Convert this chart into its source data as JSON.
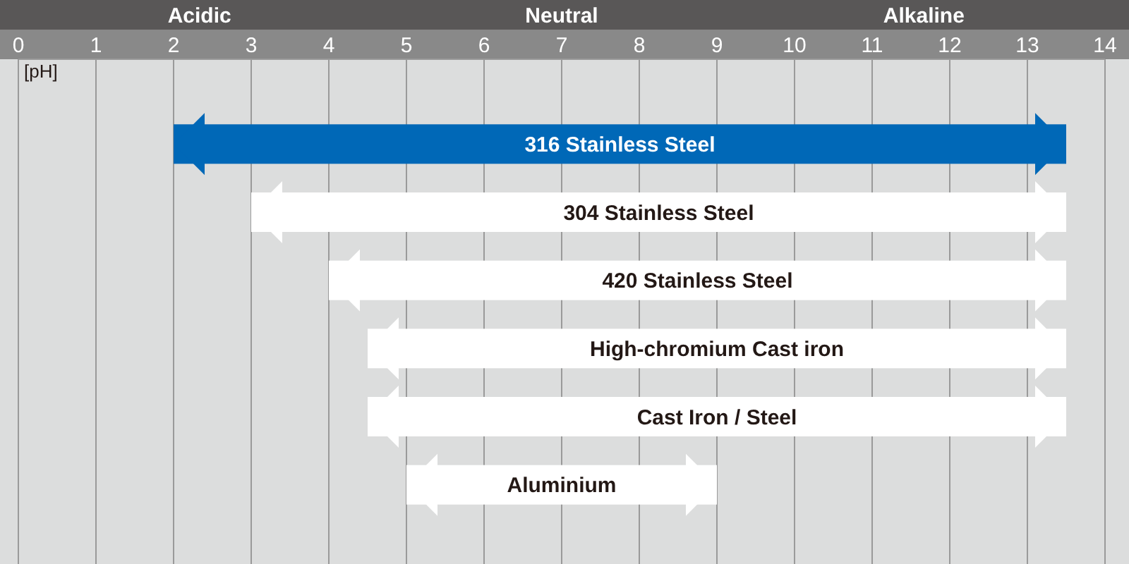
{
  "chart_data": {
    "type": "bar",
    "orientation": "horizontal",
    "xlabel": "[pH]",
    "categories": [
      "316 Stainless Steel",
      "304 Stainless Steel",
      "420 Stainless Steel",
      "High-chromium Cast iron",
      "Cast Iron / Steel",
      "Aluminium"
    ],
    "base": [
      2,
      3,
      4,
      4.5,
      4.5,
      5
    ],
    "values": [
      11.5,
      10.5,
      9.5,
      9,
      9,
      4
    ],
    "colors": [
      "#0068b7",
      "#ffffff",
      "#ffffff",
      "#ffffff",
      "#ffffff",
      "#ffffff"
    ],
    "xlim": [
      0,
      14
    ],
    "xticks": [
      0,
      1,
      2,
      3,
      4,
      5,
      6,
      7,
      8,
      9,
      10,
      11,
      12,
      13,
      14
    ],
    "grid": "x",
    "annotations": [
      "Acidic",
      "Neutral",
      "Alkaline"
    ]
  }
}
